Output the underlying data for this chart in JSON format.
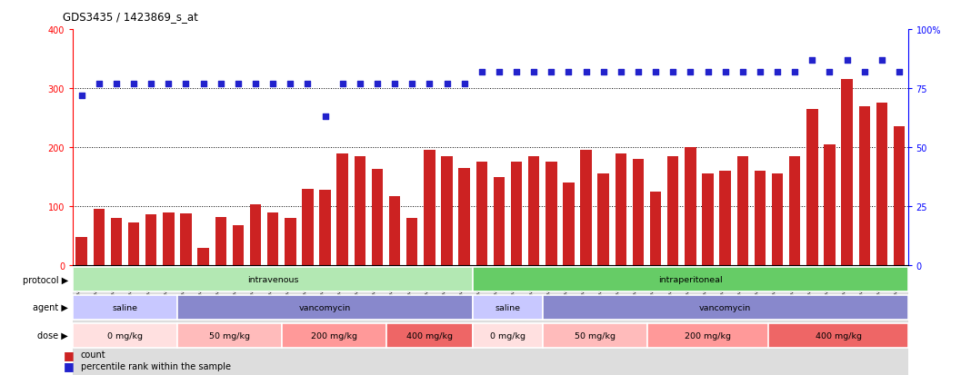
{
  "title": "GDS3435 / 1423869_s_at",
  "samples": [
    "GSM189045",
    "GSM189047",
    "GSM189048",
    "GSM189049",
    "GSM189050",
    "GSM189051",
    "GSM189052",
    "GSM189053",
    "GSM189054",
    "GSM189055",
    "GSM189056",
    "GSM189057",
    "GSM189058",
    "GSM189059",
    "GSM189060",
    "GSM189062",
    "GSM189063",
    "GSM189064",
    "GSM189065",
    "GSM189066",
    "GSM189068",
    "GSM189069",
    "GSM189070",
    "GSM189071",
    "GSM189072",
    "GSM189073",
    "GSM189074",
    "GSM189075",
    "GSM189076",
    "GSM189077",
    "GSM189078",
    "GSM189079",
    "GSM189080",
    "GSM189081",
    "GSM189082",
    "GSM189083",
    "GSM189084",
    "GSM189085",
    "GSM189086",
    "GSM189087",
    "GSM189088",
    "GSM189089",
    "GSM189090",
    "GSM189091",
    "GSM189092",
    "GSM189093",
    "GSM189094",
    "GSM189095"
  ],
  "counts": [
    48,
    95,
    80,
    73,
    87,
    90,
    88,
    30,
    82,
    68,
    103,
    90,
    80,
    130,
    128,
    190,
    185,
    163,
    117,
    80,
    196,
    185,
    165,
    175,
    150,
    175,
    185,
    175,
    140,
    195,
    155,
    190,
    180,
    125,
    185,
    200,
    155,
    160,
    185,
    160,
    155,
    185,
    265,
    205,
    315,
    270,
    275,
    235
  ],
  "percentile": [
    72,
    77,
    77,
    77,
    77,
    77,
    77,
    77,
    77,
    77,
    77,
    77,
    77,
    77,
    63,
    77,
    77,
    77,
    77,
    77,
    77,
    77,
    77,
    82,
    82,
    82,
    82,
    82,
    82,
    82,
    82,
    82,
    82,
    82,
    82,
    82,
    82,
    82,
    82,
    82,
    82,
    82,
    87,
    82,
    87,
    82,
    87,
    82
  ],
  "bar_color": "#cc2222",
  "dot_color": "#2222cc",
  "ylim_left": [
    0,
    400
  ],
  "ylim_right": [
    0,
    100
  ],
  "yticks_left": [
    0,
    100,
    200,
    300,
    400
  ],
  "yticks_right": [
    0,
    25,
    50,
    75,
    100
  ],
  "ytick_right_labels": [
    "0",
    "25",
    "50",
    "75",
    "100%"
  ],
  "protocol_spans": [
    {
      "label": "intravenous",
      "start": 0,
      "end": 23,
      "color": "#b3e8b3"
    },
    {
      "label": "intraperitoneal",
      "start": 23,
      "end": 48,
      "color": "#66cc66"
    }
  ],
  "agent_spans": [
    {
      "label": "saline",
      "start": 0,
      "end": 6,
      "color": "#c8c8ff"
    },
    {
      "label": "vancomycin",
      "start": 6,
      "end": 23,
      "color": "#8888cc"
    },
    {
      "label": "saline",
      "start": 23,
      "end": 27,
      "color": "#c8c8ff"
    },
    {
      "label": "vancomycin",
      "start": 27,
      "end": 48,
      "color": "#8888cc"
    }
  ],
  "dose_spans": [
    {
      "label": "0 mg/kg",
      "start": 0,
      "end": 6,
      "color": "#ffe0e0"
    },
    {
      "label": "50 mg/kg",
      "start": 6,
      "end": 12,
      "color": "#ffbbbb"
    },
    {
      "label": "200 mg/kg",
      "start": 12,
      "end": 18,
      "color": "#ff9999"
    },
    {
      "label": "400 mg/kg",
      "start": 18,
      "end": 23,
      "color": "#ee6666"
    },
    {
      "label": "0 mg/kg",
      "start": 23,
      "end": 27,
      "color": "#ffe0e0"
    },
    {
      "label": "50 mg/kg",
      "start": 27,
      "end": 33,
      "color": "#ffbbbb"
    },
    {
      "label": "200 mg/kg",
      "start": 33,
      "end": 40,
      "color": "#ff9999"
    },
    {
      "label": "400 mg/kg",
      "start": 40,
      "end": 48,
      "color": "#ee6666"
    }
  ],
  "row_labels": [
    "protocol",
    "agent",
    "dose"
  ],
  "legend_count_label": "count",
  "legend_pct_label": "percentile rank within the sample",
  "background_color": "#ffffff"
}
